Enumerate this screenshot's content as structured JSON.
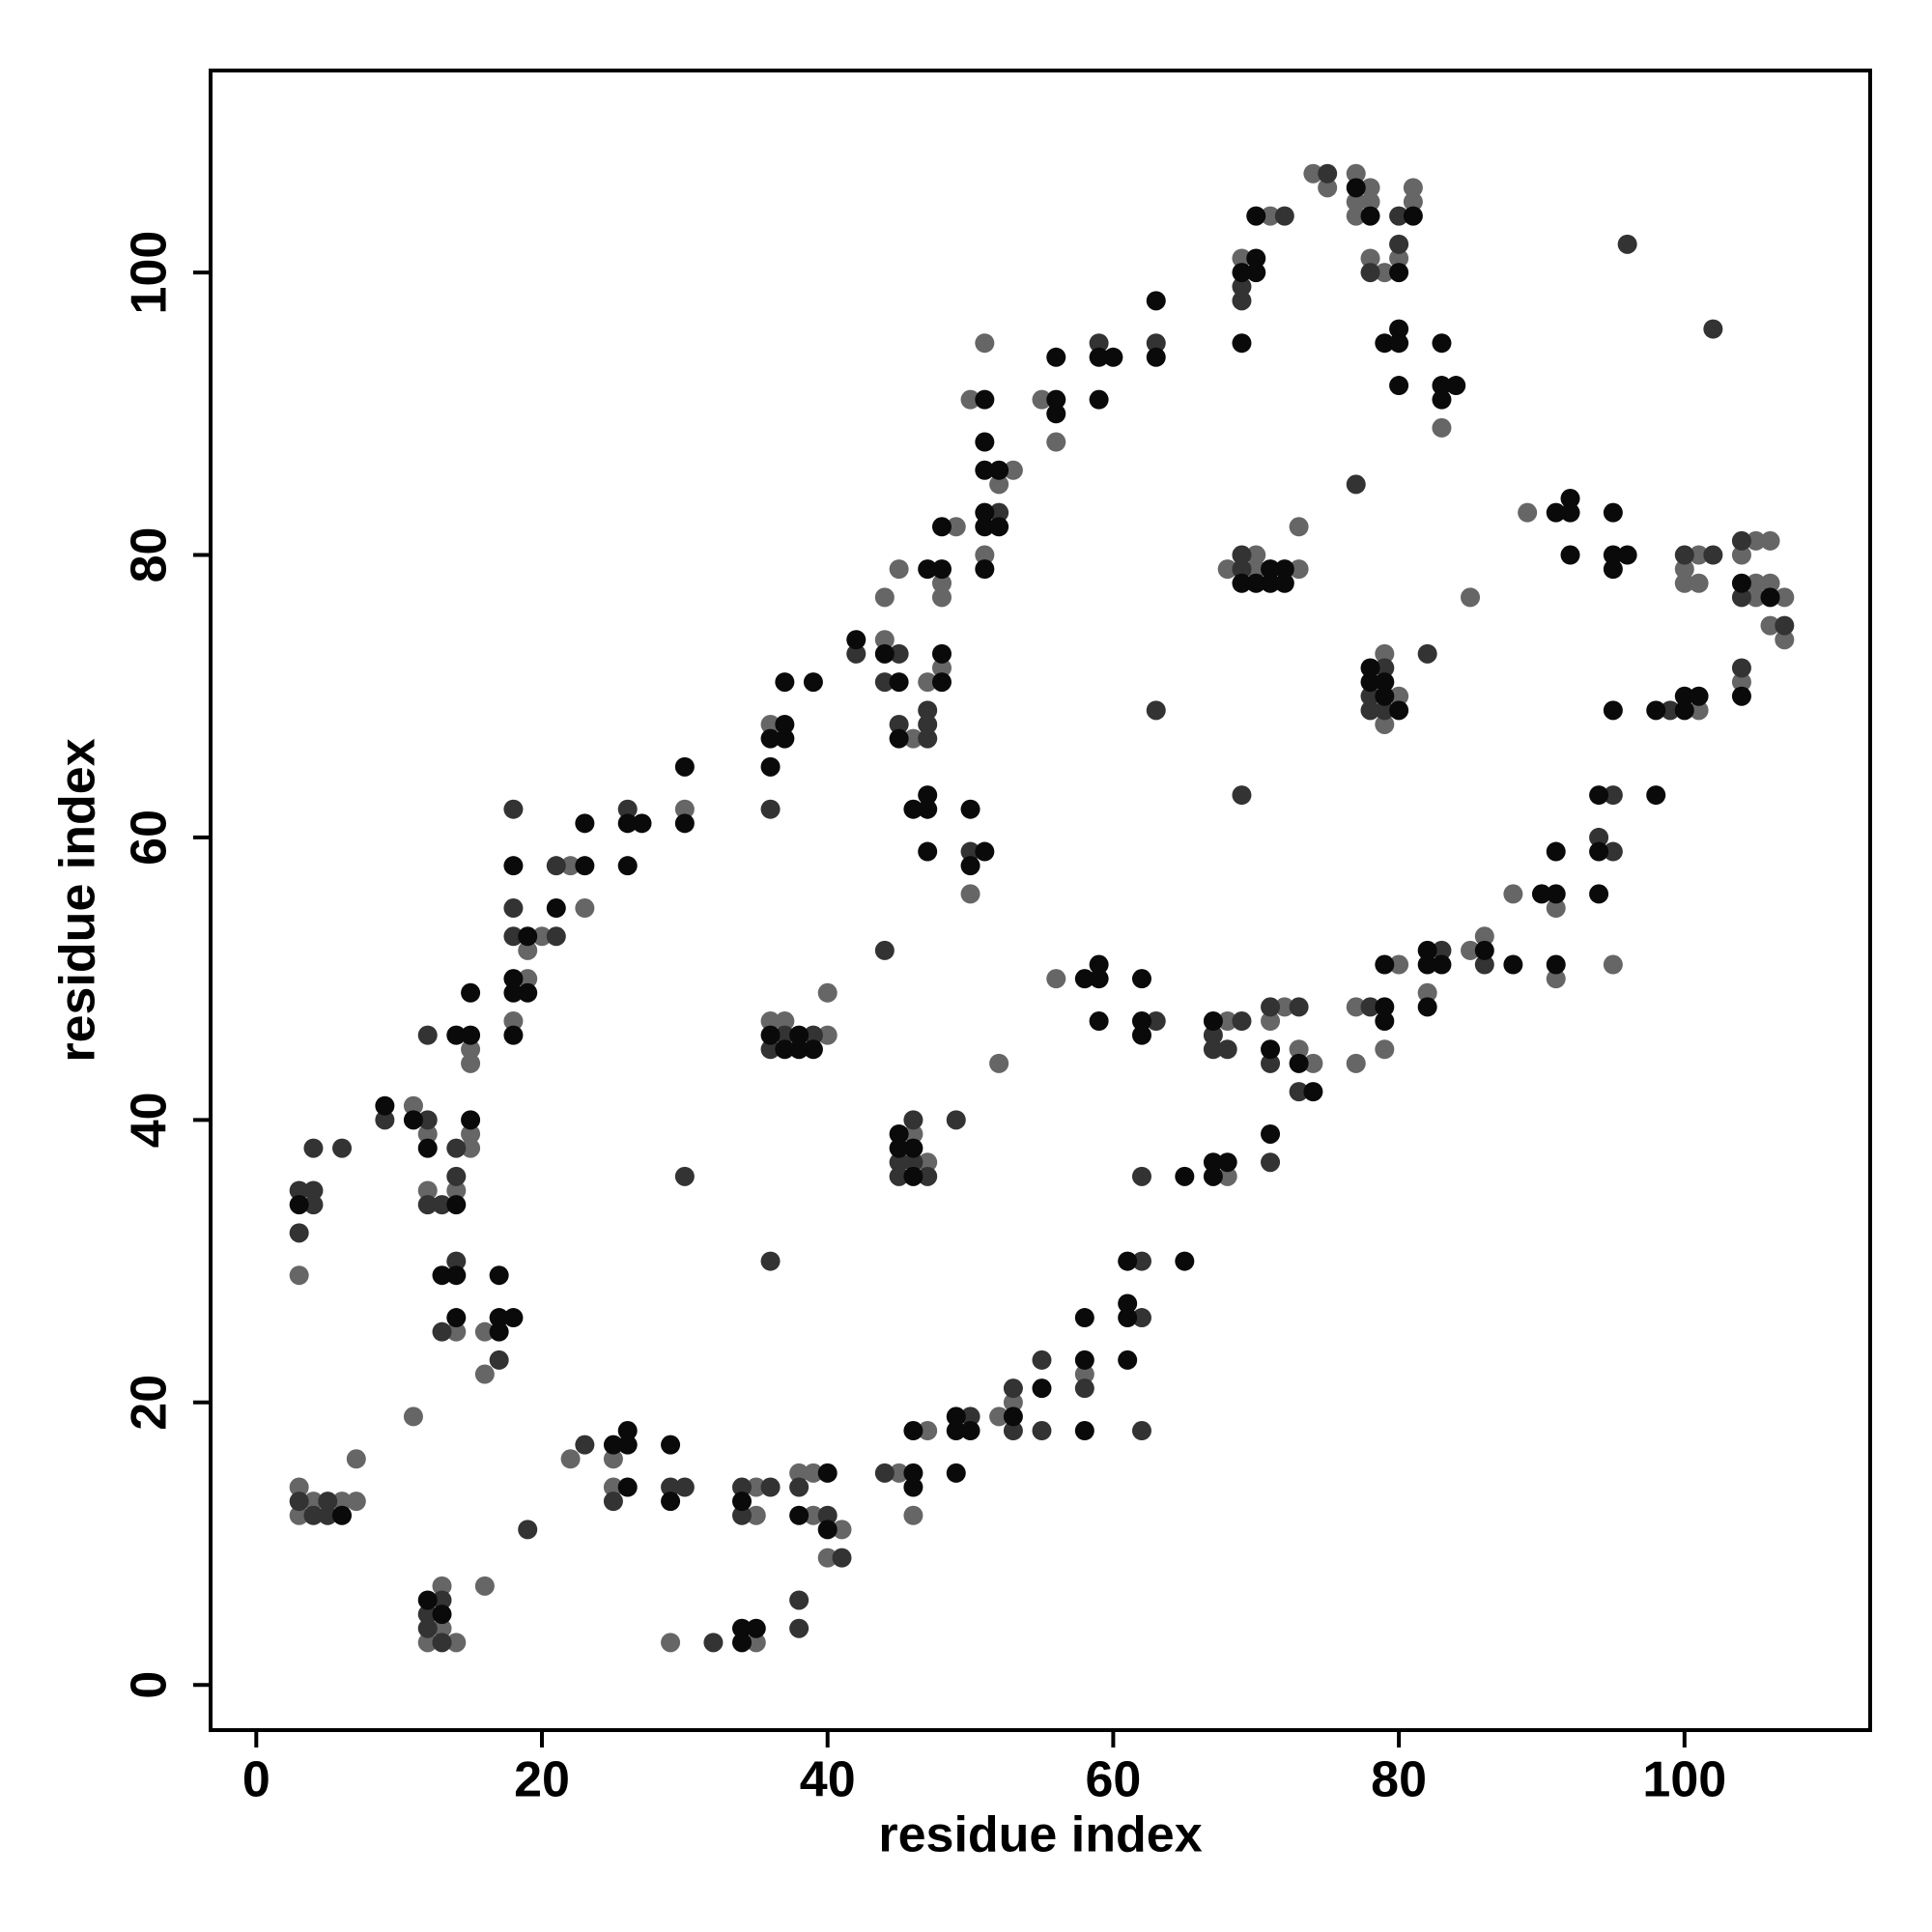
{
  "chart_data": {
    "type": "scatter",
    "xlabel": "residue index",
    "ylabel": "residue index",
    "xlim": [
      -3.2,
      113
    ],
    "ylim": [
      -3.2,
      114.3
    ],
    "xticks": [
      0,
      20,
      40,
      60,
      80,
      100
    ],
    "yticks": [
      0,
      20,
      40,
      60,
      80,
      100
    ],
    "series": [
      {
        "color": "#666666",
        "x": [
          3,
          3,
          4,
          6,
          7,
          7,
          3,
          11,
          12,
          12,
          14,
          15,
          15,
          15,
          15,
          11,
          14,
          16,
          16,
          16,
          12,
          13,
          13,
          14,
          20,
          19,
          19,
          18,
          22,
          23,
          22,
          25,
          25,
          29,
          30,
          35,
          35,
          35,
          36,
          36,
          37,
          40,
          40,
          38,
          39,
          39,
          41,
          40,
          44,
          44,
          45,
          46,
          47,
          48,
          48,
          48,
          49,
          50,
          46,
          47,
          45,
          47,
          46,
          50,
          53,
          52,
          51,
          51,
          52,
          52,
          53,
          55,
          56,
          56,
          58,
          68,
          68,
          69,
          71,
          68,
          70,
          70,
          73,
          73,
          71,
          72,
          73,
          74,
          74,
          75,
          77,
          77,
          77,
          78,
          78,
          78,
          79,
          80,
          81,
          81,
          83,
          79,
          79,
          80,
          77,
          77,
          79,
          80,
          82,
          85,
          86,
          88,
          85,
          89,
          91,
          91,
          95,
          100,
          100,
          101,
          101,
          101,
          104,
          104,
          105,
          105,
          105,
          106,
          106,
          106,
          107,
          107
        ],
        "y": [
          14,
          12,
          13,
          13,
          13,
          16,
          29,
          41,
          39,
          35,
          35,
          38,
          39,
          45,
          44,
          19,
          25,
          25,
          22,
          7,
          3,
          4,
          7,
          3,
          53,
          52,
          50,
          47,
          58,
          55,
          16,
          16,
          14,
          3,
          62,
          14,
          12,
          3,
          68,
          47,
          47,
          46,
          49,
          15,
          15,
          12,
          11,
          9,
          74,
          77,
          79,
          67,
          71,
          72,
          78,
          77,
          82,
          56,
          39,
          37,
          15,
          18,
          12,
          91,
          86,
          85,
          80,
          95,
          44,
          19,
          20,
          91,
          88,
          50,
          22,
          47,
          36,
          101,
          104,
          79,
          80,
          79,
          79,
          82,
          47,
          48,
          45,
          44,
          107,
          106,
          107,
          105,
          104,
          106,
          105,
          101,
          100,
          101,
          105,
          106,
          89,
          73,
          68,
          70,
          48,
          44,
          45,
          51,
          49,
          52,
          53,
          56,
          77,
          83,
          55,
          50,
          51,
          79,
          78,
          80,
          78,
          69,
          80,
          71,
          81,
          78,
          77,
          81,
          78,
          75,
          77,
          74
        ]
      },
      {
        "color": "#333333",
        "x": [
          3,
          3,
          3,
          4,
          5,
          5,
          4,
          4,
          4,
          6,
          9,
          12,
          12,
          13,
          14,
          14,
          12,
          14,
          13,
          17,
          19,
          12,
          12,
          13,
          13,
          18,
          18,
          18,
          21,
          21,
          23,
          25,
          26,
          29,
          30,
          30,
          32,
          34,
          34,
          36,
          36,
          36,
          36,
          37,
          39,
          38,
          40,
          41,
          38,
          38,
          42,
          44,
          45,
          45,
          47,
          47,
          47,
          44,
          50,
          45,
          45,
          46,
          46,
          47,
          49,
          44,
          50,
          52,
          53,
          53,
          55,
          55,
          59,
          63,
          58,
          62,
          62,
          62,
          62,
          63,
          63,
          67,
          67,
          68,
          69,
          69,
          69,
          72,
          69,
          69,
          69,
          71,
          71,
          73,
          73,
          71,
          75,
          78,
          80,
          80,
          77,
          78,
          78,
          79,
          79,
          78,
          83,
          82,
          86,
          94,
          95,
          95,
          96,
          99,
          100,
          102,
          102,
          104,
          104,
          104,
          107
        ],
        "y": [
          13,
          32,
          35,
          12,
          12,
          13,
          34,
          35,
          38,
          38,
          40,
          40,
          34,
          34,
          36,
          38,
          46,
          30,
          25,
          23,
          11,
          4,
          5,
          3,
          6,
          62,
          55,
          53,
          53,
          58,
          17,
          13,
          62,
          14,
          14,
          36,
          3,
          14,
          12,
          14,
          62,
          30,
          45,
          46,
          46,
          14,
          12,
          9,
          6,
          4,
          73,
          71,
          73,
          68,
          67,
          68,
          69,
          52,
          59,
          37,
          36,
          40,
          37,
          36,
          40,
          15,
          19,
          83,
          21,
          18,
          23,
          18,
          95,
          47,
          21,
          30,
          26,
          18,
          36,
          95,
          69,
          46,
          45,
          45,
          47,
          99,
          98,
          104,
          63,
          80,
          79,
          48,
          44,
          48,
          42,
          37,
          107,
          100,
          102,
          104,
          85,
          70,
          69,
          72,
          69,
          48,
          52,
          73,
          51,
          60,
          59,
          63,
          102,
          69,
          80,
          80,
          96,
          81,
          77,
          72,
          75
        ]
      },
      {
        "color": "#0a0a0a",
        "x": [
          3,
          6,
          9,
          11,
          12,
          14,
          15,
          14,
          15,
          15,
          13,
          14,
          14,
          17,
          17,
          18,
          17,
          12,
          13,
          18,
          19,
          18,
          18,
          19,
          18,
          21,
          23,
          23,
          25,
          26,
          26,
          26,
          26,
          27,
          26,
          29,
          29,
          30,
          30,
          34,
          34,
          34,
          35,
          36,
          36,
          37,
          37,
          37,
          39,
          36,
          37,
          38,
          38,
          39,
          38,
          40,
          40,
          42,
          44,
          45,
          45,
          48,
          48,
          47,
          48,
          48,
          46,
          47,
          47,
          47,
          50,
          50,
          51,
          45,
          45,
          46,
          46,
          46,
          46,
          46,
          49,
          49,
          50,
          49,
          51,
          51,
          51,
          52,
          51,
          51,
          52,
          51,
          53,
          55,
          56,
          56,
          56,
          59,
          60,
          59,
          58,
          59,
          59,
          59,
          62,
          62,
          62,
          58,
          58,
          58,
          61,
          61,
          61,
          61,
          65,
          65,
          63,
          63,
          67,
          67,
          67,
          68,
          69,
          70,
          70,
          70,
          69,
          69,
          70,
          71,
          71,
          72,
          72,
          71,
          73,
          74,
          71,
          77,
          78,
          80,
          81,
          79,
          80,
          80,
          80,
          83,
          83,
          83,
          84,
          78,
          78,
          79,
          79,
          80,
          79,
          79,
          79,
          82,
          82,
          83,
          82,
          86,
          88,
          90,
          91,
          91,
          91,
          94,
          94,
          94,
          95,
          91,
          92,
          92,
          92,
          95,
          95,
          95,
          96,
          98,
          98,
          100,
          100,
          101,
          104,
          104,
          106
        ],
        "y": [
          34,
          12,
          41,
          40,
          38,
          34,
          40,
          46,
          46,
          49,
          29,
          29,
          26,
          25,
          26,
          26,
          29,
          6,
          5,
          58,
          53,
          50,
          49,
          49,
          46,
          55,
          58,
          61,
          17,
          14,
          17,
          18,
          61,
          61,
          58,
          17,
          13,
          61,
          65,
          13,
          4,
          3,
          4,
          65,
          67,
          68,
          67,
          71,
          71,
          46,
          45,
          46,
          45,
          45,
          12,
          15,
          11,
          74,
          73,
          71,
          67,
          71,
          73,
          79,
          79,
          82,
          62,
          62,
          63,
          59,
          62,
          58,
          59,
          39,
          38,
          38,
          36,
          15,
          14,
          18,
          19,
          18,
          18,
          15,
          91,
          88,
          86,
          86,
          83,
          82,
          82,
          79,
          19,
          21,
          91,
          90,
          94,
          94,
          94,
          91,
          50,
          51,
          50,
          47,
          50,
          47,
          46,
          26,
          23,
          18,
          30,
          27,
          26,
          23,
          36,
          30,
          98,
          94,
          47,
          37,
          36,
          37,
          100,
          101,
          100,
          104,
          95,
          78,
          78,
          79,
          78,
          79,
          78,
          45,
          44,
          42,
          39,
          106,
          104,
          100,
          104,
          95,
          95,
          96,
          92,
          95,
          92,
          91,
          92,
          72,
          71,
          71,
          70,
          69,
          48,
          47,
          51,
          51,
          52,
          51,
          48,
          52,
          51,
          56,
          56,
          51,
          59,
          56,
          59,
          63,
          69,
          83,
          84,
          83,
          80,
          83,
          80,
          79,
          80,
          69,
          63,
          69,
          70,
          70,
          78,
          70,
          77
        ]
      }
    ]
  }
}
